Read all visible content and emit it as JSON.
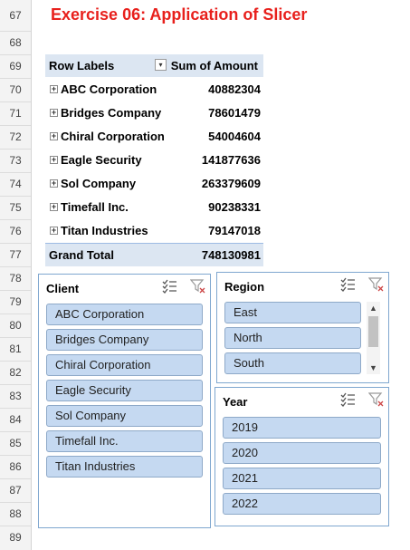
{
  "title": "Exercise 06: Application of Slicer",
  "row_numbers": [
    "67",
    "68",
    "69",
    "70",
    "71",
    "72",
    "73",
    "74",
    "75",
    "76",
    "77",
    "78",
    "79",
    "80",
    "81",
    "82",
    "83",
    "84",
    "85",
    "86",
    "87",
    "88",
    "89"
  ],
  "pivot": {
    "header_row_labels": "Row Labels",
    "header_value": "Sum of Amount",
    "filter_icon": "dropdown-filter-icon",
    "rows": [
      {
        "name": "ABC Corporation",
        "amount": "40882304"
      },
      {
        "name": "Bridges Company",
        "amount": "78601479"
      },
      {
        "name": "Chiral Corporation",
        "amount": "54004604"
      },
      {
        "name": "Eagle Security",
        "amount": "141877636"
      },
      {
        "name": "Sol Company",
        "amount": "263379609"
      },
      {
        "name": "Timefall Inc.",
        "amount": "90238331"
      },
      {
        "name": "Titan Industries",
        "amount": "79147018"
      }
    ],
    "expand_icon": "expand-plus-icon",
    "grand_total_label": "Grand Total",
    "grand_total_value": "748130981"
  },
  "slicers": {
    "client": {
      "title": "Client",
      "items": [
        "ABC Corporation",
        "Bridges Company",
        "Chiral Corporation",
        "Eagle Security",
        "Sol Company",
        "Timefall Inc.",
        "Titan Industries"
      ]
    },
    "region": {
      "title": "Region",
      "items": [
        "East",
        "North",
        "South"
      ]
    },
    "year": {
      "title": "Year",
      "items": [
        "2019",
        "2020",
        "2021",
        "2022"
      ]
    },
    "multi_select_icon": "multi-select-icon",
    "clear_filter_icon": "clear-filter-icon"
  },
  "colors": {
    "title": "#e8201c",
    "pivot_header_bg": "#dce6f2",
    "slicer_item_bg": "#c5d9f1",
    "slicer_border": "#7fa7cf"
  }
}
